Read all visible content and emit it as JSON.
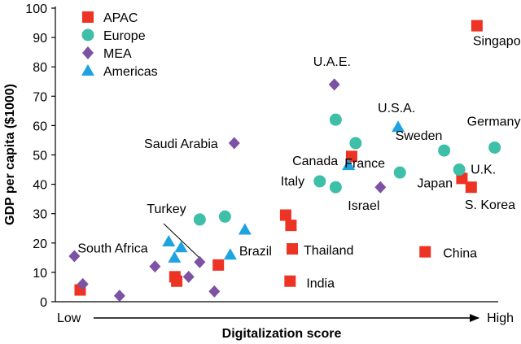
{
  "chart_data": {
    "type": "scatter",
    "xlabel": "Digitalization score",
    "ylabel": "GDP per capita ($1000)",
    "x_axis": {
      "low_label": "Low",
      "high_label": "High",
      "range": [
        0,
        10
      ],
      "ticks_shown": false
    },
    "ylim": [
      0,
      100
    ],
    "yticks": [
      0,
      10,
      20,
      30,
      40,
      50,
      60,
      70,
      80,
      90,
      100
    ],
    "grid": false,
    "legend_position": "top-left",
    "colors": {
      "APAC": "#ec3324",
      "Europe": "#3dbfa8",
      "MEA": "#7d52a3",
      "Americas": "#1fa3e0"
    },
    "series": [
      {
        "name": "APAC",
        "marker": "square",
        "points": [
          {
            "x": 0.56,
            "y": 4
          },
          {
            "x": 2.7,
            "y": 8.5
          },
          {
            "x": 2.74,
            "y": 7
          },
          {
            "x": 3.68,
            "y": 12.5
          },
          {
            "x": 5.2,
            "y": 29.5
          },
          {
            "x": 5.32,
            "y": 26
          },
          {
            "x": 5.35,
            "y": 18
          },
          {
            "x": 5.3,
            "y": 7
          },
          {
            "x": 6.69,
            "y": 49.5
          },
          {
            "x": 8.35,
            "y": 17
          },
          {
            "x": 9.18,
            "y": 42
          },
          {
            "x": 9.39,
            "y": 39
          },
          {
            "x": 9.52,
            "y": 94
          }
        ]
      },
      {
        "name": "Europe",
        "marker": "circle",
        "points": [
          {
            "x": 3.26,
            "y": 28
          },
          {
            "x": 3.83,
            "y": 29
          },
          {
            "x": 5.97,
            "y": 41
          },
          {
            "x": 6.33,
            "y": 39
          },
          {
            "x": 6.33,
            "y": 62
          },
          {
            "x": 6.78,
            "y": 54
          },
          {
            "x": 7.78,
            "y": 44
          },
          {
            "x": 8.78,
            "y": 51.5
          },
          {
            "x": 9.12,
            "y": 45
          },
          {
            "x": 9.92,
            "y": 52.5
          }
        ]
      },
      {
        "name": "MEA",
        "marker": "diamond",
        "points": [
          {
            "x": 0.43,
            "y": 15.5
          },
          {
            "x": 0.62,
            "y": 6
          },
          {
            "x": 1.45,
            "y": 2
          },
          {
            "x": 2.25,
            "y": 12
          },
          {
            "x": 3.01,
            "y": 8.5
          },
          {
            "x": 3.26,
            "y": 13.5
          },
          {
            "x": 3.59,
            "y": 3.5
          },
          {
            "x": 4.04,
            "y": 54
          },
          {
            "x": 6.3,
            "y": 74
          },
          {
            "x": 7.34,
            "y": 39
          }
        ]
      },
      {
        "name": "Americas",
        "marker": "triangle",
        "points": [
          {
            "x": 2.56,
            "y": 20.5
          },
          {
            "x": 2.69,
            "y": 15
          },
          {
            "x": 2.84,
            "y": 18.5
          },
          {
            "x": 3.95,
            "y": 16
          },
          {
            "x": 4.28,
            "y": 24.5
          },
          {
            "x": 6.62,
            "y": 46.5
          },
          {
            "x": 7.74,
            "y": 59.5
          }
        ]
      }
    ],
    "annotations": [
      {
        "text": "Singapore",
        "x": 9.52,
        "y": 94
      },
      {
        "text": "U.A.E.",
        "x": 6.3,
        "y": 74
      },
      {
        "text": "U.S.A.",
        "x": 7.74,
        "y": 59.5
      },
      {
        "text": "Germany",
        "x": 9.92,
        "y": 52.5
      },
      {
        "text": "Saudi Arabia",
        "x": 4.04,
        "y": 54
      },
      {
        "text": "Sweden",
        "x": 8.78,
        "y": 51.5
      },
      {
        "text": "Canada",
        "x": 6.62,
        "y": 46.5
      },
      {
        "text": "France",
        "x": 7.78,
        "y": 44
      },
      {
        "text": "U.K.",
        "x": 9.12,
        "y": 45
      },
      {
        "text": "Italy",
        "x": 5.97,
        "y": 41
      },
      {
        "text": "Japan",
        "x": 9.18,
        "y": 42
      },
      {
        "text": "Israel",
        "x": 7.34,
        "y": 39
      },
      {
        "text": "S. Korea",
        "x": 9.39,
        "y": 39
      },
      {
        "text": "Turkey",
        "x": 3.26,
        "y": 28
      },
      {
        "text": "South Africa",
        "x": 3.26,
        "y": 13.5
      },
      {
        "text": "Brazil",
        "x": 3.95,
        "y": 16
      },
      {
        "text": "Thailand",
        "x": 5.35,
        "y": 18
      },
      {
        "text": "China",
        "x": 8.35,
        "y": 17
      },
      {
        "text": "India",
        "x": 5.3,
        "y": 7
      }
    ]
  }
}
